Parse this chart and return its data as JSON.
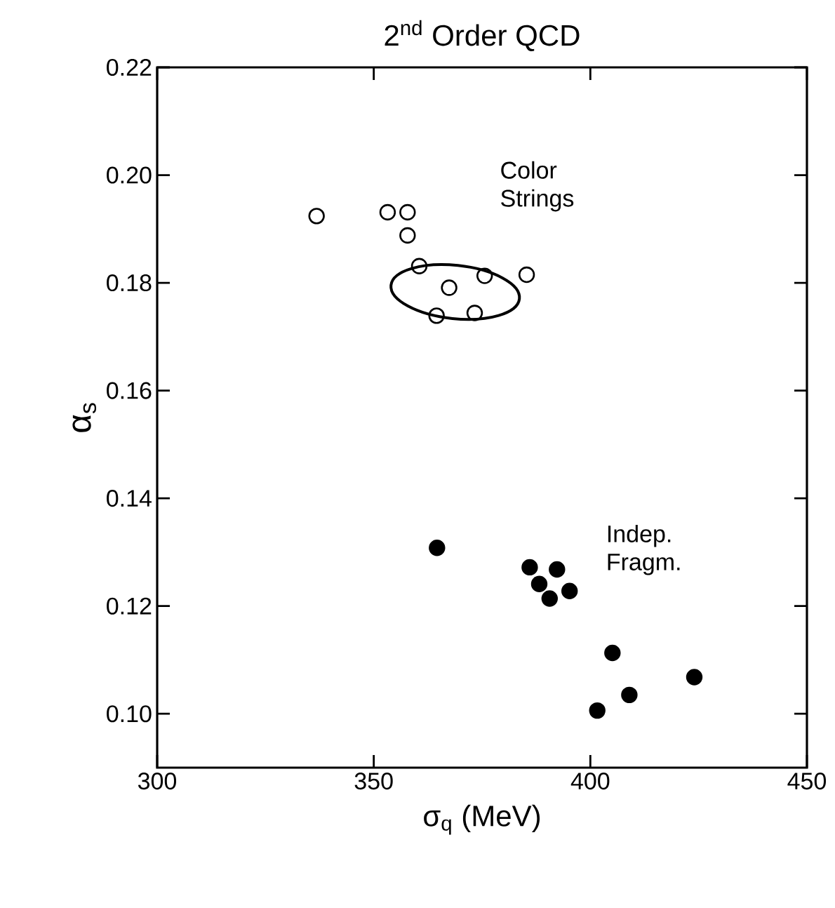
{
  "chart_data": {
    "type": "scatter",
    "title": "2$^{nd}$ Order QCD",
    "xlabel": "σ$_{q}$ (MeV)",
    "ylabel": "α$_{s}$",
    "series": [
      {
        "name": "Color Strings",
        "color": "#000000",
        "x": [
          336.8,
          353.2,
          357.8,
          357.8,
          360.5,
          367.4,
          375.6,
          385.3,
          364.5,
          373.3
        ],
        "values": [
          0.1924,
          0.1931,
          0.1931,
          0.1888,
          0.1831,
          0.1791,
          0.1813,
          0.1815,
          0.1739,
          0.1744
        ]
      },
      {
        "name": "Indep. Fragm.",
        "color": "#000000",
        "x": [
          364.6,
          386.0,
          392.3,
          388.2,
          390.6,
          395.2,
          405.1,
          409.0,
          401.6,
          424.0
        ],
        "values": [
          0.1308,
          0.1272,
          0.1268,
          0.1241,
          0.1214,
          0.1228,
          0.1113,
          0.1035,
          0.1006,
          0.1068
        ]
      }
    ],
    "xlim": [
      300,
      450
    ],
    "ylim": [
      0.09,
      0.22
    ],
    "xticks": [
      300,
      350,
      400,
      450
    ],
    "yticks": [
      {
        "value": 0.1,
        "label": "0.10"
      },
      0.12,
      0.14,
      0.16,
      0.18,
      {
        "value": 0.2,
        "label": "0.20"
      },
      0.22
    ],
    "marker": "circle",
    "grid": false
  }
}
